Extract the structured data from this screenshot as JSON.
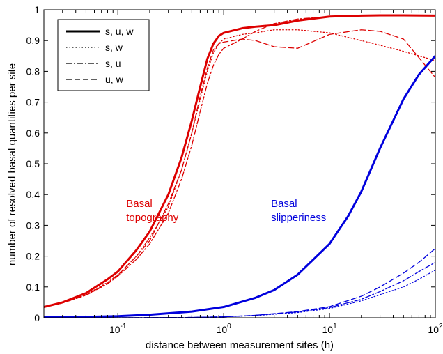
{
  "chart_data": {
    "type": "line",
    "title": "",
    "xlabel": "distance between measurement sites (h)",
    "ylabel": "number of resolved basal quantities per site",
    "xscale": "log",
    "xlim": [
      0.02,
      100
    ],
    "ylim": [
      0,
      1
    ],
    "grid": false,
    "legend_placement": "top-left",
    "x_ticks": [
      0.1,
      1,
      10,
      100
    ],
    "x_tick_labels": [
      {
        "base": "10",
        "exp": "-1"
      },
      {
        "base": "10",
        "exp": "0"
      },
      {
        "base": "10",
        "exp": "1"
      },
      {
        "base": "10",
        "exp": "2"
      }
    ],
    "y_ticks": [
      0,
      0.1,
      0.2,
      0.3,
      0.4,
      0.5,
      0.6,
      0.7,
      0.8,
      0.9,
      1
    ],
    "y_tick_labels": [
      "0",
      "0.1",
      "0.2",
      "0.3",
      "0.4",
      "0.5",
      "0.6",
      "0.7",
      "0.8",
      "0.9",
      "1"
    ],
    "legend": [
      {
        "label": "s, u, w",
        "style": "solid"
      },
      {
        "label": "s, w",
        "style": "dotted"
      },
      {
        "label": "s, u",
        "style": "dashdot"
      },
      {
        "label": "u, w",
        "style": "dashed"
      }
    ],
    "annotations": [
      {
        "lines": [
          "Basal",
          "topography"
        ],
        "color": "#dd0000",
        "x": 0.12,
        "y": 0.36
      },
      {
        "lines": [
          "Basal",
          "slipperiness"
        ],
        "color": "#0000dd",
        "x": 2.8,
        "y": 0.36
      }
    ],
    "colors": {
      "topography": "#dd0000",
      "slipperiness": "#0000dd"
    },
    "series": [
      {
        "group": "topography",
        "style": "solid",
        "x": [
          0.02,
          0.03,
          0.05,
          0.08,
          0.1,
          0.15,
          0.2,
          0.3,
          0.4,
          0.5,
          0.6,
          0.7,
          0.8,
          0.9,
          1,
          1.5,
          2,
          3,
          5,
          10,
          20,
          30,
          50,
          100
        ],
        "y": [
          0.035,
          0.05,
          0.08,
          0.125,
          0.15,
          0.22,
          0.28,
          0.4,
          0.52,
          0.64,
          0.75,
          0.84,
          0.89,
          0.915,
          0.925,
          0.94,
          0.945,
          0.95,
          0.965,
          0.978,
          0.981,
          0.982,
          0.982,
          0.981
        ]
      },
      {
        "group": "topography",
        "style": "dotted",
        "x": [
          0.02,
          0.03,
          0.05,
          0.08,
          0.1,
          0.15,
          0.2,
          0.3,
          0.4,
          0.5,
          0.6,
          0.7,
          0.8,
          0.9,
          1,
          1.5,
          2,
          3,
          5,
          10,
          20,
          30,
          50,
          100
        ],
        "y": [
          0.035,
          0.05,
          0.075,
          0.115,
          0.14,
          0.2,
          0.26,
          0.36,
          0.48,
          0.6,
          0.71,
          0.8,
          0.86,
          0.89,
          0.905,
          0.92,
          0.925,
          0.935,
          0.935,
          0.925,
          0.9,
          0.885,
          0.865,
          0.835
        ]
      },
      {
        "group": "topography",
        "style": "dashdot",
        "x": [
          0.02,
          0.03,
          0.05,
          0.08,
          0.1,
          0.15,
          0.2,
          0.3,
          0.4,
          0.5,
          0.6,
          0.7,
          0.8,
          0.9,
          1,
          1.5,
          2,
          3,
          5,
          10,
          20,
          30,
          50,
          100
        ],
        "y": [
          0.035,
          0.048,
          0.073,
          0.11,
          0.135,
          0.19,
          0.24,
          0.34,
          0.45,
          0.56,
          0.67,
          0.76,
          0.82,
          0.855,
          0.875,
          0.905,
          0.93,
          0.955,
          0.97,
          0.978,
          0.98,
          0.981,
          0.981,
          0.98
        ]
      },
      {
        "group": "topography",
        "style": "dashed",
        "x": [
          0.02,
          0.03,
          0.05,
          0.08,
          0.1,
          0.15,
          0.2,
          0.3,
          0.4,
          0.5,
          0.6,
          0.7,
          0.8,
          0.9,
          1,
          1.5,
          2,
          3,
          5,
          10,
          20,
          30,
          50,
          100
        ],
        "y": [
          0.035,
          0.048,
          0.074,
          0.112,
          0.138,
          0.2,
          0.25,
          0.37,
          0.48,
          0.6,
          0.72,
          0.81,
          0.87,
          0.89,
          0.895,
          0.905,
          0.9,
          0.88,
          0.875,
          0.92,
          0.935,
          0.93,
          0.905,
          0.78
        ]
      },
      {
        "group": "slipperiness",
        "style": "solid",
        "x": [
          0.02,
          0.05,
          0.1,
          0.2,
          0.5,
          1,
          2,
          3,
          5,
          10,
          15,
          20,
          30,
          40,
          50,
          70,
          100
        ],
        "y": [
          0.002,
          0.003,
          0.005,
          0.01,
          0.02,
          0.035,
          0.065,
          0.09,
          0.14,
          0.24,
          0.33,
          0.41,
          0.55,
          0.64,
          0.71,
          0.79,
          0.85
        ]
      },
      {
        "group": "slipperiness",
        "style": "dotted",
        "x": [
          0.02,
          0.1,
          0.5,
          1,
          2,
          5,
          10,
          20,
          30,
          50,
          70,
          100
        ],
        "y": [
          0,
          0,
          0.001,
          0.003,
          0.007,
          0.017,
          0.03,
          0.055,
          0.075,
          0.1,
          0.125,
          0.155
        ]
      },
      {
        "group": "slipperiness",
        "style": "dashdot",
        "x": [
          0.02,
          0.1,
          0.5,
          1,
          2,
          5,
          10,
          20,
          30,
          50,
          70,
          100
        ],
        "y": [
          0,
          0,
          0.001,
          0.003,
          0.008,
          0.019,
          0.033,
          0.06,
          0.085,
          0.12,
          0.15,
          0.18
        ]
      },
      {
        "group": "slipperiness",
        "style": "dashed",
        "x": [
          0.02,
          0.1,
          0.5,
          1,
          2,
          5,
          10,
          20,
          30,
          50,
          70,
          100
        ],
        "y": [
          0,
          0,
          0.001,
          0.003,
          0.008,
          0.02,
          0.036,
          0.07,
          0.1,
          0.145,
          0.18,
          0.225
        ]
      }
    ]
  }
}
